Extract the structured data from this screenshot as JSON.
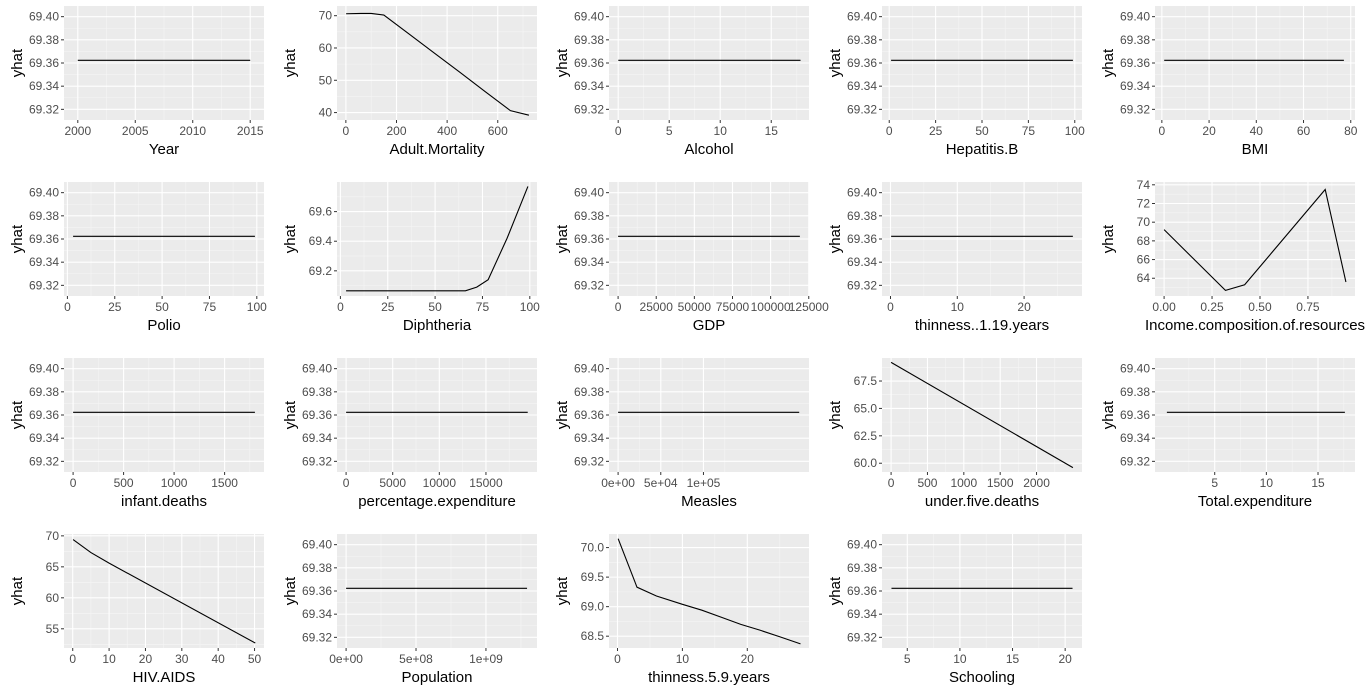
{
  "chart_data": [
    {
      "type": "line",
      "xlabel": "Year",
      "ylabel": "yhat",
      "xlim": [
        1998.8,
        2016.2
      ],
      "ylim": [
        69.3108,
        69.4092
      ],
      "xticks": [
        2000,
        2005,
        2010,
        2015
      ],
      "yticks": [
        69.32,
        69.34,
        69.36,
        69.38,
        69.4
      ],
      "xticklabels": [
        "2000",
        "2005",
        "2010",
        "2015"
      ],
      "yticklabels": [
        "69.32",
        "69.34",
        "69.36",
        "69.38",
        "69.40"
      ],
      "x": [
        2000,
        2015
      ],
      "y": [
        69.3623,
        69.3623
      ]
    },
    {
      "type": "line",
      "xlabel": "Adult.Mortality",
      "ylabel": "yhat",
      "xlim": [
        -35,
        755
      ],
      "ylim": [
        37.7,
        73
      ],
      "xticks": [
        0,
        200,
        400,
        600
      ],
      "yticks": [
        40,
        50,
        60,
        70
      ],
      "xticklabels": [
        "0",
        "200",
        "400",
        "600"
      ],
      "yticklabels": [
        "40",
        "50",
        "60",
        "70"
      ],
      "x": [
        1,
        60,
        100,
        150,
        250,
        350,
        450,
        550,
        650,
        723
      ],
      "y": [
        70.6,
        70.7,
        70.7,
        70.2,
        64.3,
        58.4,
        52.5,
        46.5,
        40.6,
        39.2
      ]
    },
    {
      "type": "line",
      "xlabel": "Alcohol",
      "ylabel": "yhat",
      "xlim": [
        -0.9,
        18.7
      ],
      "ylim": [
        69.3108,
        69.4092
      ],
      "xticks": [
        0,
        5,
        10,
        15
      ],
      "yticks": [
        69.32,
        69.34,
        69.36,
        69.38,
        69.4
      ],
      "xticklabels": [
        "0",
        "5",
        "10",
        "15"
      ],
      "yticklabels": [
        "69.32",
        "69.34",
        "69.36",
        "69.38",
        "69.40"
      ],
      "x": [
        0.01,
        17.87
      ],
      "y": [
        69.3623,
        69.3623
      ]
    },
    {
      "type": "line",
      "xlabel": "Hepatitis.B",
      "ylabel": "yhat",
      "xlim": [
        -3.9,
        103.9
      ],
      "ylim": [
        69.3108,
        69.4092
      ],
      "xticks": [
        0,
        25,
        50,
        75,
        100
      ],
      "yticks": [
        69.32,
        69.34,
        69.36,
        69.38,
        69.4
      ],
      "xticklabels": [
        "0",
        "25",
        "50",
        "75",
        "100"
      ],
      "yticklabels": [
        "69.32",
        "69.34",
        "69.36",
        "69.38",
        "69.40"
      ],
      "x": [
        1,
        99
      ],
      "y": [
        69.3623,
        69.3623
      ]
    },
    {
      "type": "line",
      "xlabel": "BMI",
      "ylabel": "yhat",
      "xlim": [
        -2.9,
        81.8
      ],
      "ylim": [
        69.3108,
        69.4092
      ],
      "xticks": [
        0,
        20,
        40,
        60,
        80
      ],
      "yticks": [
        69.32,
        69.34,
        69.36,
        69.38,
        69.4
      ],
      "xticklabels": [
        "0",
        "20",
        "40",
        "60",
        "80"
      ],
      "yticklabels": [
        "69.32",
        "69.34",
        "69.36",
        "69.38",
        "69.40"
      ],
      "x": [
        1,
        77.1
      ],
      "y": [
        69.3623,
        69.3623
      ]
    },
    {
      "type": "line",
      "xlabel": "Polio",
      "ylabel": "yhat",
      "xlim": [
        -1.8,
        103.8
      ],
      "ylim": [
        69.3108,
        69.4092
      ],
      "xticks": [
        0,
        25,
        50,
        75,
        100
      ],
      "yticks": [
        69.32,
        69.34,
        69.36,
        69.38,
        69.4
      ],
      "xticklabels": [
        "0",
        "25",
        "50",
        "75",
        "100"
      ],
      "yticklabels": [
        "69.32",
        "69.34",
        "69.36",
        "69.38",
        "69.40"
      ],
      "x": [
        3,
        99
      ],
      "y": [
        69.3623,
        69.3623
      ]
    },
    {
      "type": "line",
      "xlabel": "Diphtheria",
      "ylabel": "yhat",
      "xlim": [
        -1.8,
        103.8
      ],
      "ylim": [
        69.03,
        69.8
      ],
      "xticks": [
        0,
        25,
        50,
        75,
        100
      ],
      "yticks": [
        69.2,
        69.4,
        69.6
      ],
      "xticklabels": [
        "0",
        "25",
        "50",
        "75",
        "100"
      ],
      "yticklabels": [
        "69.2",
        "69.4",
        "69.6"
      ],
      "x": [
        3,
        66,
        72,
        78,
        88,
        99
      ],
      "y": [
        69.065,
        69.065,
        69.09,
        69.14,
        69.42,
        69.77
      ]
    },
    {
      "type": "line",
      "xlabel": "GDP",
      "ylabel": "yhat",
      "xlim": [
        -5960,
        125160
      ],
      "ylim": [
        69.3108,
        69.4092
      ],
      "xticks": [
        0,
        25000,
        50000,
        75000,
        100000,
        125000
      ],
      "yticks": [
        69.32,
        69.34,
        69.36,
        69.38,
        69.4
      ],
      "xticklabels": [
        "0",
        "25000",
        "50000",
        "75000",
        "100000",
        "125000"
      ],
      "yticklabels": [
        "69.32",
        "69.34",
        "69.36",
        "69.38",
        "69.40"
      ],
      "x": [
        1.68,
        119172.7
      ],
      "y": [
        69.3623,
        69.3623
      ]
    },
    {
      "type": "line",
      "xlabel": "thinness..1.19.years",
      "ylabel": "yhat",
      "xlim": [
        -1.27,
        28.67
      ],
      "ylim": [
        69.3108,
        69.4092
      ],
      "xticks": [
        0,
        10,
        20
      ],
      "yticks": [
        69.32,
        69.34,
        69.36,
        69.38,
        69.4
      ],
      "xticklabels": [
        "0",
        "10",
        "20"
      ],
      "yticklabels": [
        "69.32",
        "69.34",
        "69.36",
        "69.38",
        "69.40"
      ],
      "x": [
        0.1,
        27.3
      ],
      "y": [
        69.3623,
        69.3623
      ]
    },
    {
      "type": "line",
      "xlabel": "Income.composition.of.resources",
      "ylabel": "yhat",
      "xlim": [
        -0.0474,
        0.9954
      ],
      "ylim": [
        62.1,
        74.3
      ],
      "xticks": [
        0,
        0.25,
        0.5,
        0.75
      ],
      "yticks": [
        64,
        66,
        68,
        70,
        72,
        74
      ],
      "xticklabels": [
        "0.00",
        "0.25",
        "0.50",
        "0.75"
      ],
      "yticklabels": [
        "64",
        "66",
        "68",
        "70",
        "72",
        "74"
      ],
      "x": [
        0,
        0.32,
        0.42,
        0.84,
        0.948
      ],
      "y": [
        69.2,
        62.7,
        63.3,
        73.5,
        63.6
      ]
    },
    {
      "type": "line",
      "xlabel": "infant.deaths",
      "ylabel": "yhat",
      "xlim": [
        -90,
        1890
      ],
      "ylim": [
        69.3108,
        69.4092
      ],
      "xticks": [
        0,
        500,
        1000,
        1500
      ],
      "yticks": [
        69.32,
        69.34,
        69.36,
        69.38,
        69.4
      ],
      "xticklabels": [
        "0",
        "500",
        "1000",
        "1500"
      ],
      "yticklabels": [
        "69.32",
        "69.34",
        "69.36",
        "69.38",
        "69.40"
      ],
      "x": [
        0,
        1800
      ],
      "y": [
        69.3623,
        69.3623
      ]
    },
    {
      "type": "line",
      "xlabel": "percentage.expenditure",
      "ylabel": "yhat",
      "xlim": [
        -975,
        20475
      ],
      "ylim": [
        69.3108,
        69.4092
      ],
      "xticks": [
        0,
        5000,
        10000,
        15000
      ],
      "yticks": [
        69.32,
        69.34,
        69.36,
        69.38,
        69.4
      ],
      "xticklabels": [
        "0",
        "5000",
        "10000",
        "15000"
      ],
      "yticklabels": [
        "69.32",
        "69.34",
        "69.36",
        "69.38",
        "69.40"
      ],
      "x": [
        0,
        19480
      ],
      "y": [
        69.3623,
        69.3623
      ]
    },
    {
      "type": "line",
      "xlabel": "Measles",
      "ylabel": "yhat",
      "xlim": [
        -10650,
        223650
      ],
      "ylim": [
        69.3108,
        69.4092
      ],
      "xticks": [
        0,
        50000,
        100000
      ],
      "yticks": [
        69.32,
        69.34,
        69.36,
        69.38,
        69.4
      ],
      "xticklabels": [
        "0e+00",
        "5e+04",
        "1e+05"
      ],
      "yticklabels": [
        "69.32",
        "69.34",
        "69.36",
        "69.38",
        "69.40"
      ],
      "x": [
        0,
        212183
      ],
      "y": [
        69.3623,
        69.3623
      ]
    },
    {
      "type": "line",
      "xlabel": "under.five.deaths",
      "ylabel": "yhat",
      "xlim": [
        -125,
        2625
      ],
      "ylim": [
        59.2,
        69.6
      ],
      "xticks": [
        0,
        500,
        1000,
        1500,
        2000
      ],
      "yticks": [
        60,
        62.5,
        65,
        67.5
      ],
      "xticklabels": [
        "0",
        "500",
        "1000",
        "1500",
        "2000"
      ],
      "yticklabels": [
        "60.0",
        "62.5",
        "65.0",
        "67.5"
      ],
      "x": [
        0,
        2500
      ],
      "y": [
        69.2,
        59.6
      ]
    },
    {
      "type": "line",
      "xlabel": "Total.expenditure",
      "ylabel": "yhat",
      "xlim": [
        -0.78,
        18.58
      ],
      "ylim": [
        69.3108,
        69.4092
      ],
      "xticks": [
        5,
        10,
        15
      ],
      "yticks": [
        69.32,
        69.34,
        69.36,
        69.38,
        69.4
      ],
      "xticklabels": [
        "5",
        "10",
        "15"
      ],
      "yticklabels": [
        "69.32",
        "69.34",
        "69.36",
        "69.38",
        "69.40"
      ],
      "x": [
        0.37,
        17.6
      ],
      "y": [
        69.3623,
        69.3623
      ]
    },
    {
      "type": "line",
      "xlabel": "HIV.AIDS",
      "ylabel": "yhat",
      "xlim": [
        -2.4,
        52.6
      ],
      "ylim": [
        51.9,
        70.3
      ],
      "xticks": [
        0,
        10,
        20,
        30,
        40,
        50
      ],
      "yticks": [
        55,
        60,
        65,
        70
      ],
      "xticklabels": [
        "0",
        "10",
        "20",
        "30",
        "40",
        "50"
      ],
      "yticklabels": [
        "55",
        "60",
        "65",
        "70"
      ],
      "x": [
        0.1,
        5,
        10,
        50.2
      ],
      "y": [
        69.4,
        67.3,
        65.6,
        52.7
      ]
    },
    {
      "type": "line",
      "xlabel": "Population",
      "ylabel": "yhat",
      "xlim": [
        -65000000,
        1365000000
      ],
      "ylim": [
        69.3108,
        69.4092
      ],
      "xticks": [
        0,
        500000000,
        1000000000
      ],
      "yticks": [
        69.32,
        69.34,
        69.36,
        69.38,
        69.4
      ],
      "xticklabels": [
        "0e+00",
        "5e+08",
        "1e+09"
      ],
      "yticklabels": [
        "69.32",
        "69.34",
        "69.36",
        "69.38",
        "69.40"
      ],
      "x": [
        34,
        1293859294
      ],
      "y": [
        69.3623,
        69.3623
      ]
    },
    {
      "type": "line",
      "xlabel": "thinness.5.9.years",
      "ylabel": "yhat",
      "xlim": [
        -1.31,
        29.51
      ],
      "ylim": [
        68.3,
        70.23
      ],
      "xticks": [
        0,
        10,
        20
      ],
      "yticks": [
        68.5,
        69,
        69.5,
        70
      ],
      "xticklabels": [
        "0",
        "10",
        "20"
      ],
      "yticklabels": [
        "68.5",
        "69.0",
        "69.5",
        "70.0"
      ],
      "x": [
        0.1,
        3,
        6,
        10,
        13,
        16,
        19,
        22,
        25,
        28.2
      ],
      "y": [
        70.15,
        69.33,
        69.18,
        69.04,
        68.94,
        68.82,
        68.7,
        68.6,
        68.49,
        68.37
      ]
    },
    {
      "type": "line",
      "xlabel": "Schooling",
      "ylabel": "yhat",
      "xlim": [
        2.6,
        21.6
      ],
      "ylim": [
        69.3108,
        69.4092
      ],
      "xticks": [
        5,
        10,
        15,
        20
      ],
      "yticks": [
        69.32,
        69.34,
        69.36,
        69.38,
        69.4
      ],
      "xticklabels": [
        "5",
        "10",
        "15",
        "20"
      ],
      "yticklabels": [
        "69.32",
        "69.34",
        "69.36",
        "69.38",
        "69.40"
      ],
      "x": [
        3.5,
        20.7
      ],
      "y": [
        69.3623,
        69.3623
      ]
    }
  ]
}
